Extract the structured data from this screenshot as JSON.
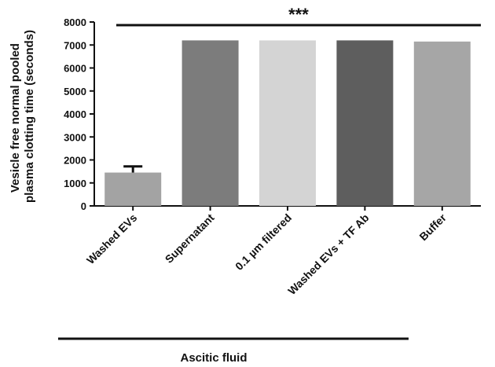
{
  "chart_data": {
    "type": "bar",
    "ylabel_line1": "Vesicle free normal pooled",
    "ylabel_line2": "plasma clotting time (seconds)",
    "ylim": [
      0,
      8000
    ],
    "yticks": [
      0,
      1000,
      2000,
      3000,
      4000,
      5000,
      6000,
      7000,
      8000
    ],
    "categories": [
      "Washed EVs",
      "Supernatant",
      "0.1 µm filtered",
      "Washed EVs + TF Ab",
      "Buffer"
    ],
    "values": [
      1450,
      7200,
      7200,
      7200,
      7150
    ],
    "error": [
      270,
      0,
      0,
      0,
      0
    ],
    "colors": [
      "#a3a3a3",
      "#7c7c7c",
      "#d4d4d4",
      "#5e5e5e",
      "#a6a6a6"
    ],
    "significance": "***",
    "group_label": "Ascitic fluid",
    "grid": false
  }
}
